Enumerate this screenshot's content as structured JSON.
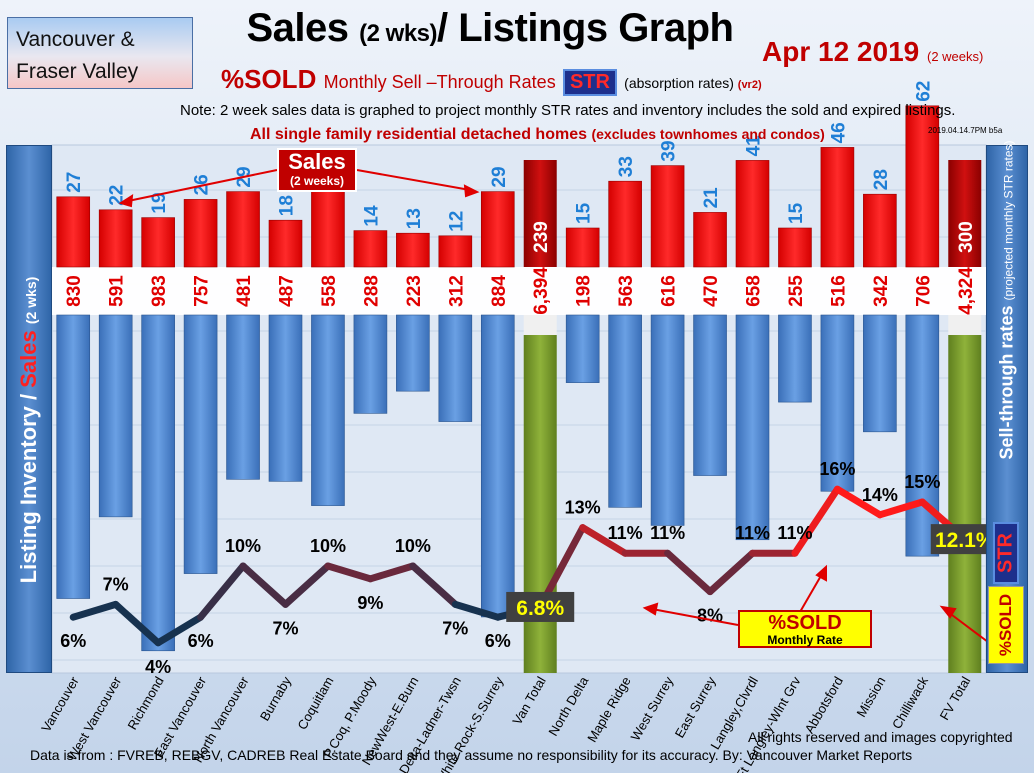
{
  "header": {
    "region_line1": "Vancouver &",
    "region_line2": "Fraser Valley",
    "title_main": "Sales",
    "title_small": "(2 wks)",
    "title_rest": "/ Listings Graph",
    "date": "Apr 12  2019",
    "date_small": "(2 weeks)",
    "subtitle_main": "%SOLD",
    "subtitle_rest": "Monthly Sell –Through Rates",
    "str_badge": "STR",
    "absorption": "(absorption rates)",
    "version": "(vr2)",
    "note": "Note: 2 week sales data is graphed to project monthly STR rates and inventory includes the sold and expired listings.",
    "all_sf": "All single family residential detached homes",
    "all_sf_small": "(excludes townhomes and condos)",
    "stamp": "2019.04.14.7PM b5a"
  },
  "side_labels": {
    "left_part1": "Listing Inventory /",
    "left_part2": "Sales",
    "left_part3": "(2  wks)",
    "right_main": "Sell-through rates",
    "right_small": "(projected monthly STR rates)",
    "str_vertical": "STR",
    "sold_vertical": "%SOLD"
  },
  "callouts": {
    "sales_big": "Sales",
    "sales_small": "(2 weeks)",
    "sold_big": "%SOLD",
    "sold_small": "Monthly Rate"
  },
  "footer": {
    "rights": "All rights reserved and  images copyrighted",
    "source": "Data is from : FVREB, REBGV, CADREB Real Estate Board and they assume no responsibility for its accuracy. By: Vancouver Market Reports"
  },
  "colors": {
    "sales_bar": "#ff0000",
    "inventory_bar": "#4f86d0",
    "total_bar": "#7a9a2a",
    "total_sales_bar": "#b00000",
    "line_low": "#17324f",
    "line_high": "#ff1a1a"
  },
  "chart_data": {
    "type": "bar",
    "categories": [
      "Vancouver",
      "West Vancouver",
      "Richmond",
      "East Vancouver",
      "North Vancouver",
      "Burnaby",
      "Coquitlam",
      "P.Coq, P.Moody",
      "NewWest-E.Burn",
      "Delta-Ladner-Twsn",
      "White Rock-S.Surrey",
      "Van Total",
      "North Delta",
      "Maple Ridge",
      "West Surrey",
      "East Surrey",
      "Langley,Clvrdl",
      "Ft Langley-Wlnt Grv",
      "Abbotsford",
      "Mission",
      "Chilliwack",
      "FV Total"
    ],
    "series": [
      {
        "name": "Sales",
        "values": [
          27,
          22,
          19,
          26,
          29,
          18,
          30,
          14,
          13,
          12,
          29,
          239,
          15,
          33,
          39,
          21,
          41,
          15,
          46,
          28,
          62,
          300
        ]
      },
      {
        "name": "Listing Inventory",
        "values": [
          830,
          591,
          983,
          757,
          481,
          487,
          558,
          288,
          223,
          312,
          884,
          6394,
          198,
          563,
          616,
          470,
          658,
          255,
          516,
          342,
          706,
          4324
        ]
      },
      {
        "name": "%SOLD",
        "values": [
          6,
          7,
          4,
          6,
          10,
          7,
          10,
          9,
          10,
          7,
          6,
          6.8,
          13,
          11,
          11,
          8,
          11,
          11,
          16,
          14,
          15,
          12.1
        ]
      }
    ],
    "inventory_labels": [
      "830",
      "591",
      "983",
      "757",
      "481",
      "487",
      "558",
      "288",
      "223",
      "312",
      "884",
      "6,394",
      "198",
      "563",
      "616",
      "470",
      "658",
      "255",
      "516",
      "342",
      "706",
      "4,324"
    ],
    "str_labels": [
      "6%",
      "7%",
      "4%",
      "6%",
      "10%",
      "7%",
      "10%",
      "9%",
      "10%",
      "7%",
      "6%",
      "6.8%",
      "13%",
      "11%",
      "11%",
      "8%",
      "11%",
      "11%",
      "16%",
      "14%",
      "15%",
      "12.1%"
    ],
    "total_indices": [
      11,
      21
    ],
    "grid": true
  }
}
